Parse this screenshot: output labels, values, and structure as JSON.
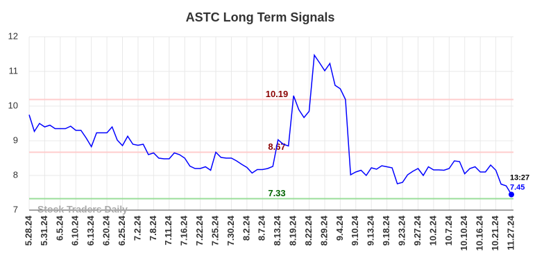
{
  "chart_data": {
    "type": "line",
    "title": "ASTC Long Term Signals",
    "categories": [
      "5.28.24",
      null,
      null,
      "5.31.24",
      null,
      null,
      "6.5.24",
      null,
      null,
      "6.10.24",
      null,
      null,
      "6.13.24",
      null,
      null,
      "6.20.24",
      null,
      null,
      "6.25.24",
      null,
      null,
      "7.2.24",
      null,
      null,
      "7.8.24",
      null,
      null,
      "7.11.24",
      null,
      null,
      "7.16.24",
      null,
      null,
      "7.22.24",
      null,
      null,
      "7.25.24",
      null,
      null,
      "7.30.24",
      null,
      null,
      "8.2.24",
      null,
      null,
      "8.7.24",
      null,
      null,
      "8.13.24",
      null,
      null,
      "8.19.24",
      null,
      null,
      "8.22.24",
      null,
      null,
      "8.29.24",
      null,
      null,
      "9.4.24",
      null,
      null,
      "9.10.24",
      null,
      null,
      "9.13.24",
      null,
      null,
      "9.18.24",
      null,
      null,
      "9.23.24",
      null,
      null,
      "9.27.24",
      null,
      null,
      "10.2.24",
      null,
      null,
      "10.7.24",
      null,
      null,
      "10.10.24",
      null,
      null,
      "10.16.24",
      null,
      null,
      "10.21.24",
      null,
      null,
      "11.27.24"
    ],
    "series": [
      {
        "name": "ASTC",
        "color": "#0000ff",
        "values": [
          9.75,
          9.27,
          9.5,
          9.4,
          9.45,
          9.35,
          9.35,
          9.35,
          9.42,
          9.3,
          9.3,
          9.08,
          8.83,
          9.23,
          9.23,
          9.23,
          9.4,
          9.02,
          8.86,
          9.13,
          8.9,
          8.87,
          8.9,
          8.6,
          8.65,
          8.5,
          8.48,
          8.48,
          8.65,
          8.6,
          8.5,
          8.27,
          8.2,
          8.2,
          8.25,
          8.15,
          8.67,
          8.52,
          8.5,
          8.5,
          8.42,
          8.32,
          8.23,
          8.07,
          8.17,
          8.17,
          8.2,
          8.26,
          9.03,
          8.9,
          8.85,
          10.3,
          9.9,
          9.67,
          9.85,
          11.47,
          11.25,
          11.02,
          11.23,
          10.6,
          10.5,
          10.19,
          8.02,
          8.1,
          8.15,
          8.0,
          8.22,
          8.18,
          8.28,
          8.25,
          8.22,
          7.76,
          7.8,
          8.02,
          8.12,
          8.2,
          8.0,
          8.25,
          8.16,
          8.16,
          8.15,
          8.2,
          8.42,
          8.4,
          8.05,
          8.2,
          8.25,
          8.1,
          8.1,
          8.3,
          8.15,
          7.75,
          7.7,
          7.45
        ]
      }
    ],
    "ylim": [
      7,
      12
    ],
    "yticks": [
      7,
      8,
      9,
      10,
      11,
      12
    ],
    "grid": true,
    "hlines": [
      {
        "value": 10.19,
        "color": "#ffcccc",
        "label_color": "#8b0000"
      },
      {
        "value": 8.67,
        "color": "#ffcccc",
        "label_color": "#8b0000"
      },
      {
        "value": 7.33,
        "color": "#99dd99",
        "label_color": "#006400"
      }
    ],
    "last_time": "13:27",
    "watermark": "Stock Traders Daily"
  }
}
